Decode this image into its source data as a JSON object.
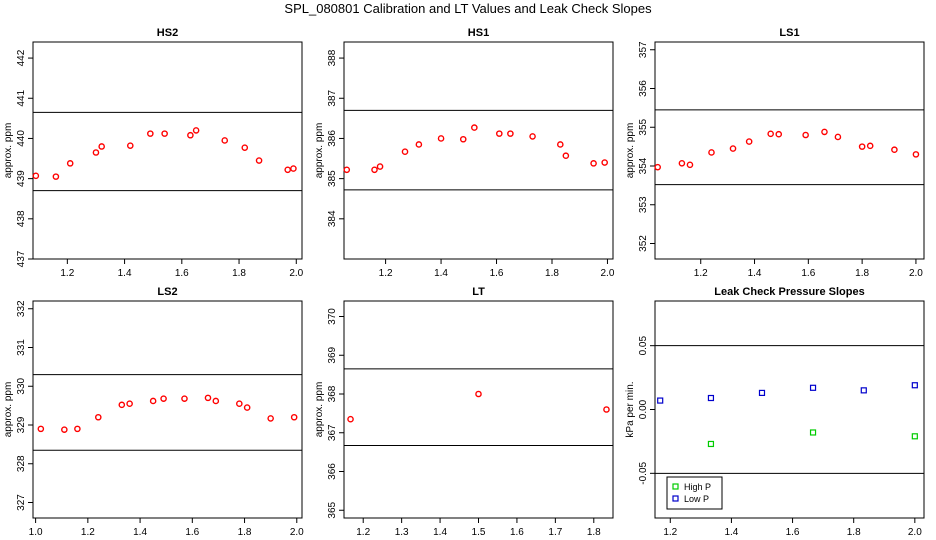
{
  "title": "SPL_080801  Calibration and LT Values and Leak Check Slopes",
  "chart_data": [
    {
      "type": "scatter",
      "title": "HS2",
      "ylabel": "approx. ppm",
      "xlim": [
        1.08,
        2.02
      ],
      "ylim": [
        437,
        442.4
      ],
      "xticks": [
        1.2,
        1.4,
        1.6,
        1.8,
        2.0
      ],
      "xtick_labels": [
        "1.2",
        "1.4",
        "1.6",
        "1.8",
        "2.0"
      ],
      "yticks": [
        437,
        438,
        439,
        440,
        441,
        442
      ],
      "ytick_labels": [
        "437",
        "438",
        "439",
        "440",
        "441",
        "442"
      ],
      "hlines": [
        440.65,
        438.7
      ],
      "series": [
        {
          "color": "#ff0000",
          "marker": "circle",
          "x": [
            1.09,
            1.16,
            1.21,
            1.3,
            1.32,
            1.42,
            1.49,
            1.54,
            1.63,
            1.65,
            1.75,
            1.82,
            1.87,
            1.97,
            1.99
          ],
          "y": [
            439.07,
            439.05,
            439.38,
            439.65,
            439.8,
            439.82,
            440.12,
            440.12,
            440.08,
            440.2,
            439.95,
            439.77,
            439.45,
            439.22,
            439.25
          ]
        }
      ]
    },
    {
      "type": "scatter",
      "title": "HS1",
      "ylabel": "approx. ppm",
      "xlim": [
        1.05,
        2.02
      ],
      "ylim": [
        383,
        388.4
      ],
      "xticks": [
        1.2,
        1.4,
        1.6,
        1.8,
        2.0
      ],
      "xtick_labels": [
        "1.2",
        "1.4",
        "1.6",
        "1.8",
        "2.0"
      ],
      "yticks": [
        384,
        385,
        386,
        387,
        388
      ],
      "ytick_labels": [
        "384",
        "385",
        "386",
        "387",
        "388"
      ],
      "hlines": [
        386.7,
        384.72
      ],
      "series": [
        {
          "color": "#ff0000",
          "marker": "circle",
          "x": [
            1.06,
            1.16,
            1.18,
            1.27,
            1.32,
            1.4,
            1.48,
            1.52,
            1.61,
            1.65,
            1.73,
            1.83,
            1.85,
            1.95,
            1.99
          ],
          "y": [
            385.22,
            385.22,
            385.3,
            385.67,
            385.85,
            386.0,
            385.98,
            386.27,
            386.12,
            386.12,
            386.05,
            385.85,
            385.57,
            385.38,
            385.4
          ]
        }
      ]
    },
    {
      "type": "scatter",
      "title": "LS1",
      "ylabel": "approx. ppm",
      "xlim": [
        1.03,
        2.03
      ],
      "ylim": [
        351.6,
        357.2
      ],
      "xticks": [
        1.2,
        1.4,
        1.6,
        1.8,
        2.0
      ],
      "xtick_labels": [
        "1.2",
        "1.4",
        "1.6",
        "1.8",
        "2.0"
      ],
      "yticks": [
        352,
        353,
        354,
        355,
        356,
        357
      ],
      "ytick_labels": [
        "352",
        "353",
        "354",
        "355",
        "356",
        "357"
      ],
      "hlines": [
        355.45,
        353.52
      ],
      "series": [
        {
          "color": "#ff0000",
          "marker": "circle",
          "x": [
            1.04,
            1.13,
            1.16,
            1.24,
            1.32,
            1.38,
            1.46,
            1.49,
            1.59,
            1.66,
            1.71,
            1.8,
            1.83,
            1.92,
            2.0
          ],
          "y": [
            353.97,
            354.07,
            354.03,
            354.35,
            354.45,
            354.63,
            354.83,
            354.82,
            354.8,
            354.88,
            354.75,
            354.5,
            354.52,
            354.42,
            354.3
          ]
        }
      ]
    },
    {
      "type": "scatter",
      "title": "LS2",
      "ylabel": "approx. ppm",
      "xlim": [
        0.99,
        2.02
      ],
      "ylim": [
        326.6,
        332.2
      ],
      "xticks": [
        1.0,
        1.2,
        1.4,
        1.6,
        1.8,
        2.0
      ],
      "xtick_labels": [
        "1.0",
        "1.2",
        "1.4",
        "1.6",
        "1.8",
        "2.0"
      ],
      "yticks": [
        327,
        328,
        329,
        330,
        331,
        332
      ],
      "ytick_labels": [
        "327",
        "328",
        "329",
        "330",
        "331",
        "332"
      ],
      "hlines": [
        330.3,
        328.35
      ],
      "series": [
        {
          "color": "#ff0000",
          "marker": "circle",
          "x": [
            1.02,
            1.11,
            1.16,
            1.24,
            1.33,
            1.36,
            1.45,
            1.49,
            1.57,
            1.66,
            1.69,
            1.78,
            1.81,
            1.9,
            1.99
          ],
          "y": [
            328.9,
            328.88,
            328.9,
            329.2,
            329.52,
            329.55,
            329.62,
            329.68,
            329.68,
            329.7,
            329.62,
            329.55,
            329.45,
            329.17,
            329.2
          ]
        }
      ]
    },
    {
      "type": "scatter",
      "title": "LT",
      "ylabel": "approx. ppm",
      "xlim": [
        1.15,
        1.85
      ],
      "ylim": [
        364.8,
        370.4
      ],
      "xticks": [
        1.2,
        1.3,
        1.4,
        1.5,
        1.6,
        1.7,
        1.8
      ],
      "xtick_labels": [
        "1.2",
        "1.3",
        "1.4",
        "1.5",
        "1.6",
        "1.7",
        "1.8"
      ],
      "yticks": [
        365,
        366,
        367,
        368,
        369,
        370
      ],
      "ytick_labels": [
        "365",
        "366",
        "367",
        "368",
        "369",
        "370"
      ],
      "hlines": [
        368.65,
        366.67
      ],
      "series": [
        {
          "color": "#ff0000",
          "marker": "circle",
          "x": [
            1.167,
            1.5,
            1.833
          ],
          "y": [
            367.35,
            368.0,
            367.6
          ]
        }
      ]
    },
    {
      "type": "scatter",
      "title": "Leak Check Pressure Slopes",
      "ylabel": "kPa per min.",
      "xlim": [
        1.15,
        2.03
      ],
      "ylim": [
        -0.085,
        0.085
      ],
      "xticks": [
        1.2,
        1.4,
        1.6,
        1.8,
        2.0
      ],
      "xtick_labels": [
        "1.2",
        "1.4",
        "1.6",
        "1.8",
        "2.0"
      ],
      "yticks": [
        -0.05,
        0.0,
        0.05
      ],
      "ytick_labels": [
        "-0.05",
        "0.00",
        "0.05"
      ],
      "hlines": [
        0.05,
        -0.05
      ],
      "legend_position": "bottom-left",
      "series": [
        {
          "name": "High P",
          "color": "#00cc00",
          "marker": "square",
          "x": [
            1.333,
            1.667,
            2.0
          ],
          "y": [
            -0.027,
            -0.018,
            -0.021
          ]
        },
        {
          "name": "Low P",
          "color": "#0000cc",
          "marker": "square",
          "x": [
            1.167,
            1.333,
            1.5,
            1.667,
            1.833,
            2.0
          ],
          "y": [
            0.007,
            0.009,
            0.013,
            0.017,
            0.015,
            0.019
          ]
        }
      ]
    }
  ]
}
